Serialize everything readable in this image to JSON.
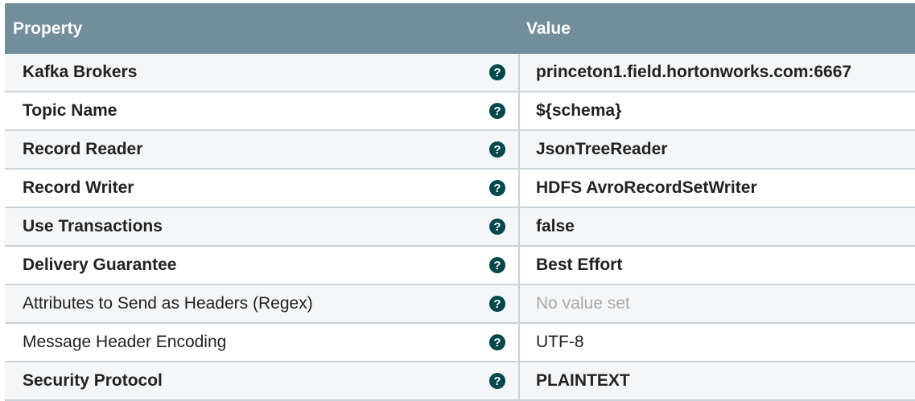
{
  "header": {
    "property": "Property",
    "value": "Value"
  },
  "help_icon": "?",
  "rows": [
    {
      "name": "Kafka Brokers",
      "value": "princeton1.field.hortonworks.com:6667",
      "bold": true,
      "empty": false
    },
    {
      "name": "Topic Name",
      "value": "${schema}",
      "bold": true,
      "empty": false
    },
    {
      "name": "Record Reader",
      "value": "JsonTreeReader",
      "bold": true,
      "empty": false
    },
    {
      "name": "Record Writer",
      "value": "HDFS AvroRecordSetWriter",
      "bold": true,
      "empty": false
    },
    {
      "name": "Use Transactions",
      "value": "false",
      "bold": true,
      "empty": false
    },
    {
      "name": "Delivery Guarantee",
      "value": "Best Effort",
      "bold": true,
      "empty": false
    },
    {
      "name": "Attributes to Send as Headers (Regex)",
      "value": "No value set",
      "bold": false,
      "empty": true
    },
    {
      "name": "Message Header Encoding",
      "value": "UTF-8",
      "bold": false,
      "empty": false
    },
    {
      "name": "Security Protocol",
      "value": "PLAINTEXT",
      "bold": true,
      "empty": false
    }
  ]
}
